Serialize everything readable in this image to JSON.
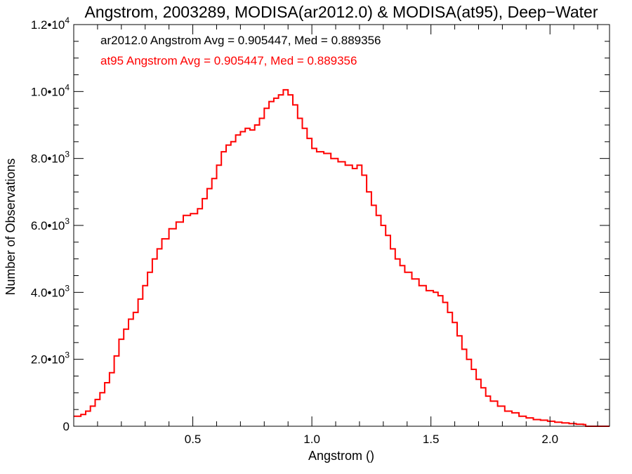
{
  "chart_data": {
    "type": "histogram",
    "title": "Angstrom, 2003289, MODISA(ar2012.0) & MODISA(at95), Deep−Water",
    "xlabel": "Angstrom ()",
    "ylabel": "Number of Observations",
    "xlim": [
      0.0,
      2.25
    ],
    "ylim": [
      0,
      12000
    ],
    "x_ticks": [
      {
        "value": 0.5,
        "label": "0.5"
      },
      {
        "value": 1.0,
        "label": "1.0"
      },
      {
        "value": 1.5,
        "label": "1.5"
      },
      {
        "value": 2.0,
        "label": "2.0"
      }
    ],
    "y_ticks": [
      {
        "value": 0,
        "mantissa": "0",
        "exponent": ""
      },
      {
        "value": 2000,
        "mantissa": "2.0•10",
        "exponent": "3"
      },
      {
        "value": 4000,
        "mantissa": "4.0•10",
        "exponent": "3"
      },
      {
        "value": 6000,
        "mantissa": "6.0•10",
        "exponent": "3"
      },
      {
        "value": 8000,
        "mantissa": "8.0•10",
        "exponent": "3"
      },
      {
        "value": 10000,
        "mantissa": "1.0•10",
        "exponent": "4"
      },
      {
        "value": 12000,
        "mantissa": "1.2•10",
        "exponent": "4"
      }
    ],
    "x_minor_ticks": [
      0.1,
      0.2,
      0.3,
      0.4,
      0.6,
      0.7,
      0.8,
      0.9,
      1.1,
      1.2,
      1.3,
      1.4,
      1.6,
      1.7,
      1.8,
      1.9,
      2.1,
      2.2
    ],
    "y_minor_ticks": [
      500,
      1000,
      1500,
      2500,
      3000,
      3500,
      4500,
      5000,
      5500,
      6500,
      7000,
      7500,
      8500,
      9000,
      9500,
      10500,
      11000,
      11500
    ],
    "annotations": [
      {
        "text": "ar2012.0 Angstrom Avg = 0.905447, Med = 0.889356",
        "color": "#000000"
      },
      {
        "text": "at95 Angstrom Avg = 0.905447, Med = 0.889356",
        "color": "#ff0000"
      }
    ],
    "series": [
      {
        "color": "#ff0000",
        "points": [
          [
            0.0,
            300
          ],
          [
            0.03,
            350
          ],
          [
            0.05,
            450
          ],
          [
            0.07,
            600
          ],
          [
            0.09,
            800
          ],
          [
            0.11,
            1000
          ],
          [
            0.13,
            1300
          ],
          [
            0.15,
            1600
          ],
          [
            0.17,
            2100
          ],
          [
            0.19,
            2600
          ],
          [
            0.21,
            2900
          ],
          [
            0.23,
            3200
          ],
          [
            0.25,
            3400
          ],
          [
            0.27,
            3800
          ],
          [
            0.29,
            4200
          ],
          [
            0.31,
            4600
          ],
          [
            0.33,
            5000
          ],
          [
            0.35,
            5300
          ],
          [
            0.37,
            5600
          ],
          [
            0.4,
            5900
          ],
          [
            0.43,
            6100
          ],
          [
            0.46,
            6300
          ],
          [
            0.49,
            6350
          ],
          [
            0.52,
            6500
          ],
          [
            0.54,
            6800
          ],
          [
            0.56,
            7100
          ],
          [
            0.58,
            7400
          ],
          [
            0.6,
            7800
          ],
          [
            0.62,
            8200
          ],
          [
            0.64,
            8400
          ],
          [
            0.66,
            8500
          ],
          [
            0.68,
            8700
          ],
          [
            0.7,
            8800
          ],
          [
            0.72,
            8900
          ],
          [
            0.74,
            8850
          ],
          [
            0.76,
            9000
          ],
          [
            0.78,
            9200
          ],
          [
            0.8,
            9500
          ],
          [
            0.82,
            9700
          ],
          [
            0.84,
            9800
          ],
          [
            0.86,
            9900
          ],
          [
            0.88,
            10050
          ],
          [
            0.9,
            9900
          ],
          [
            0.92,
            9600
          ],
          [
            0.94,
            9200
          ],
          [
            0.96,
            8900
          ],
          [
            0.98,
            8600
          ],
          [
            1.0,
            8300
          ],
          [
            1.02,
            8200
          ],
          [
            1.05,
            8150
          ],
          [
            1.08,
            8000
          ],
          [
            1.11,
            7900
          ],
          [
            1.14,
            7800
          ],
          [
            1.17,
            7700
          ],
          [
            1.19,
            7800
          ],
          [
            1.21,
            7500
          ],
          [
            1.23,
            7000
          ],
          [
            1.25,
            6600
          ],
          [
            1.27,
            6300
          ],
          [
            1.29,
            6000
          ],
          [
            1.31,
            5700
          ],
          [
            1.33,
            5300
          ],
          [
            1.35,
            5000
          ],
          [
            1.37,
            4800
          ],
          [
            1.39,
            4600
          ],
          [
            1.42,
            4400
          ],
          [
            1.45,
            4200
          ],
          [
            1.48,
            4050
          ],
          [
            1.51,
            4000
          ],
          [
            1.53,
            3900
          ],
          [
            1.55,
            3700
          ],
          [
            1.57,
            3400
          ],
          [
            1.59,
            3100
          ],
          [
            1.61,
            2700
          ],
          [
            1.63,
            2300
          ],
          [
            1.65,
            2000
          ],
          [
            1.67,
            1700
          ],
          [
            1.69,
            1400
          ],
          [
            1.71,
            1150
          ],
          [
            1.73,
            900
          ],
          [
            1.75,
            750
          ],
          [
            1.78,
            600
          ],
          [
            1.81,
            450
          ],
          [
            1.84,
            400
          ],
          [
            1.87,
            300
          ],
          [
            1.9,
            250
          ],
          [
            1.93,
            200
          ],
          [
            1.96,
            180
          ],
          [
            1.99,
            150
          ],
          [
            2.02,
            120
          ],
          [
            2.05,
            100
          ],
          [
            2.08,
            80
          ],
          [
            2.11,
            60
          ],
          [
            2.14,
            50
          ],
          [
            2.15,
            0
          ],
          [
            2.25,
            0
          ]
        ]
      }
    ]
  }
}
